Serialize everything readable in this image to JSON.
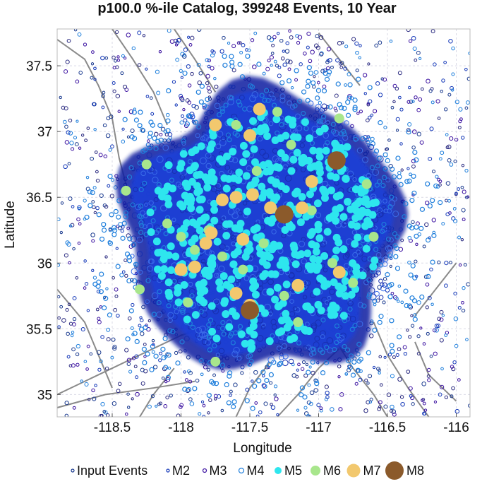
{
  "chart_data": {
    "type": "scatter",
    "title": "p100.0 %-ile Catalog, 399248 Events, 10 Year",
    "xlabel": "Longitude",
    "ylabel": "Latitude",
    "xlim": [
      -118.9,
      -115.9
    ],
    "ylim": [
      34.83,
      37.78
    ],
    "xticks": [
      -118.5,
      -118,
      -117.5,
      -117,
      -116.5,
      -116
    ],
    "xtick_labels": [
      "-118.5",
      "-118",
      "-117.5",
      "-117",
      "-116.5",
      "-116"
    ],
    "yticks": [
      35,
      35.5,
      36,
      36.5,
      37,
      37.5
    ],
    "ytick_labels": [
      "35",
      "35.5",
      "36",
      "36.5",
      "37",
      "37.5"
    ],
    "grid": true,
    "legend_position": "bottom",
    "background_layer": {
      "description": "gray fault traces",
      "color": "#888888"
    },
    "cloud": {
      "center": [
        -117.4,
        36.25
      ],
      "extent_lon": [
        -118.5,
        -116.3
      ],
      "extent_lat": [
        35.2,
        37.45
      ],
      "fill_color": "#1f3fd6",
      "edge_color": "#0b1fa0"
    },
    "series": [
      {
        "name": "Input Events",
        "marker": "small-open-circle",
        "color": "#1a3a8f",
        "count_shown": "many"
      },
      {
        "name": "M2",
        "marker": "open-circle",
        "color": "#1438b8"
      },
      {
        "name": "M3",
        "marker": "open-circle",
        "color": "#3a10a0"
      },
      {
        "name": "M4",
        "marker": "open-circle",
        "color": "#1f7fdc"
      },
      {
        "name": "M5",
        "marker": "filled-circle",
        "color": "#2ee6ee"
      },
      {
        "name": "M6",
        "marker": "filled-circle",
        "color": "#a8e68c",
        "points": [
          [
            -118.25,
            36.75
          ],
          [
            -118.1,
            36.3
          ],
          [
            -118.0,
            36.2
          ],
          [
            -117.9,
            36.1
          ],
          [
            -117.8,
            36.25
          ],
          [
            -117.7,
            36.05
          ],
          [
            -117.55,
            35.95
          ],
          [
            -117.4,
            36.15
          ],
          [
            -117.25,
            35.75
          ],
          [
            -117.15,
            35.55
          ],
          [
            -117.05,
            36.4
          ],
          [
            -116.9,
            36.0
          ],
          [
            -116.75,
            35.85
          ],
          [
            -116.65,
            36.6
          ],
          [
            -117.6,
            37.05
          ],
          [
            -117.3,
            37.15
          ],
          [
            -118.3,
            35.8
          ],
          [
            -117.95,
            35.7
          ],
          [
            -117.75,
            35.25
          ],
          [
            -116.85,
            37.1
          ],
          [
            -117.45,
            36.7
          ],
          [
            -117.2,
            36.9
          ],
          [
            -118.4,
            36.55
          ],
          [
            -116.6,
            36.2
          ]
        ]
      },
      {
        "name": "M7",
        "marker": "filled-circle",
        "color": "#f2c86e",
        "points": [
          [
            -117.75,
            37.05
          ],
          [
            -117.43,
            37.17
          ],
          [
            -117.5,
            36.97
          ],
          [
            -117.6,
            36.5
          ],
          [
            -117.7,
            36.48
          ],
          [
            -117.48,
            36.52
          ],
          [
            -117.35,
            36.42
          ],
          [
            -117.12,
            36.42
          ],
          [
            -117.05,
            36.62
          ],
          [
            -117.78,
            36.23
          ],
          [
            -117.82,
            36.15
          ],
          [
            -117.55,
            36.18
          ],
          [
            -118.0,
            35.95
          ],
          [
            -117.9,
            35.97
          ],
          [
            -116.85,
            35.93
          ],
          [
            -117.15,
            35.83
          ],
          [
            -117.6,
            35.77
          ],
          [
            -117.5,
            35.68
          ]
        ]
      },
      {
        "name": "M8",
        "marker": "filled-circle",
        "color": "#8b5a2b",
        "points": [
          [
            -116.87,
            36.78
          ],
          [
            -117.25,
            36.37
          ],
          [
            -117.5,
            35.64
          ]
        ]
      }
    ]
  }
}
